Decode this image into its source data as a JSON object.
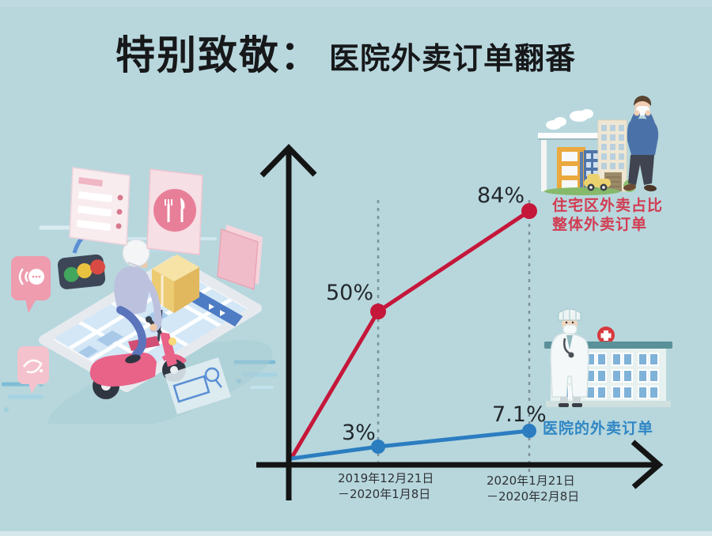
{
  "title": {
    "prefix": "特别致敬：",
    "main": "医院外卖订单翻番"
  },
  "chart_data": {
    "type": "line",
    "title": "特别致敬：医院外卖订单翻番",
    "x_categories": [
      "2019年12月21日－2020年1月8日",
      "2020年1月21日－2020年2月8日"
    ],
    "x_tick_lines": [
      [
        "2019年12月21日",
        "－2020年1月8日"
      ],
      [
        "2020年1月21日",
        "－2020年2月8日"
      ]
    ],
    "series": [
      {
        "name": "住宅区外卖占比整体外卖订单",
        "color": "#c5173a",
        "values": [
          50,
          84
        ],
        "point_labels": [
          "50%",
          "84%"
        ],
        "annotation_lines": [
          "住宅区外卖占比",
          "整体外卖订单"
        ]
      },
      {
        "name": "医院的外卖订单",
        "color": "#2b7dc0",
        "values": [
          3,
          7.1
        ],
        "point_labels": [
          "3%",
          "7.1%"
        ],
        "annotation_lines": [
          "医院的外卖订单"
        ]
      }
    ],
    "xlabel": "",
    "ylabel": "",
    "ylim": [
      0,
      100
    ],
    "grid": false,
    "legend_position": "right-side color-coded annotations",
    "axes_style": "black arrow axes from lower-left origin",
    "guide_lines": "gray vertical dotted line at each x category"
  },
  "colors": {
    "background": "#b7d7dd",
    "title_text": "#17181a",
    "axis": "#141414",
    "dashed_guide": "#7e9199",
    "residential_red": "#c5173a",
    "hospital_blue": "#2b7dc0",
    "red_annotation_text": "#d23c52",
    "blue_annotation_text": "#2f86c4",
    "date_text": "#2f3236"
  },
  "icons": {
    "delivery_scene": "delivery-rider-smartphone-map-illustration",
    "order_card": "order-list-card-icon",
    "restaurant_card": "fork-knife-card-icon",
    "traffic_light": "traffic-light-icon",
    "voice_bubble": "voice-chat-bubble-icon",
    "scribble_bubble": "scribble-chat-bubble-icon",
    "search_card": "map-search-icon",
    "residential_scene": "masked-resident-with-buildings-illustration",
    "hospital_scene": "doctor-with-hospital-illustration",
    "y_axis": "y-axis-up-arrow",
    "x_axis": "x-axis-right-arrow"
  }
}
